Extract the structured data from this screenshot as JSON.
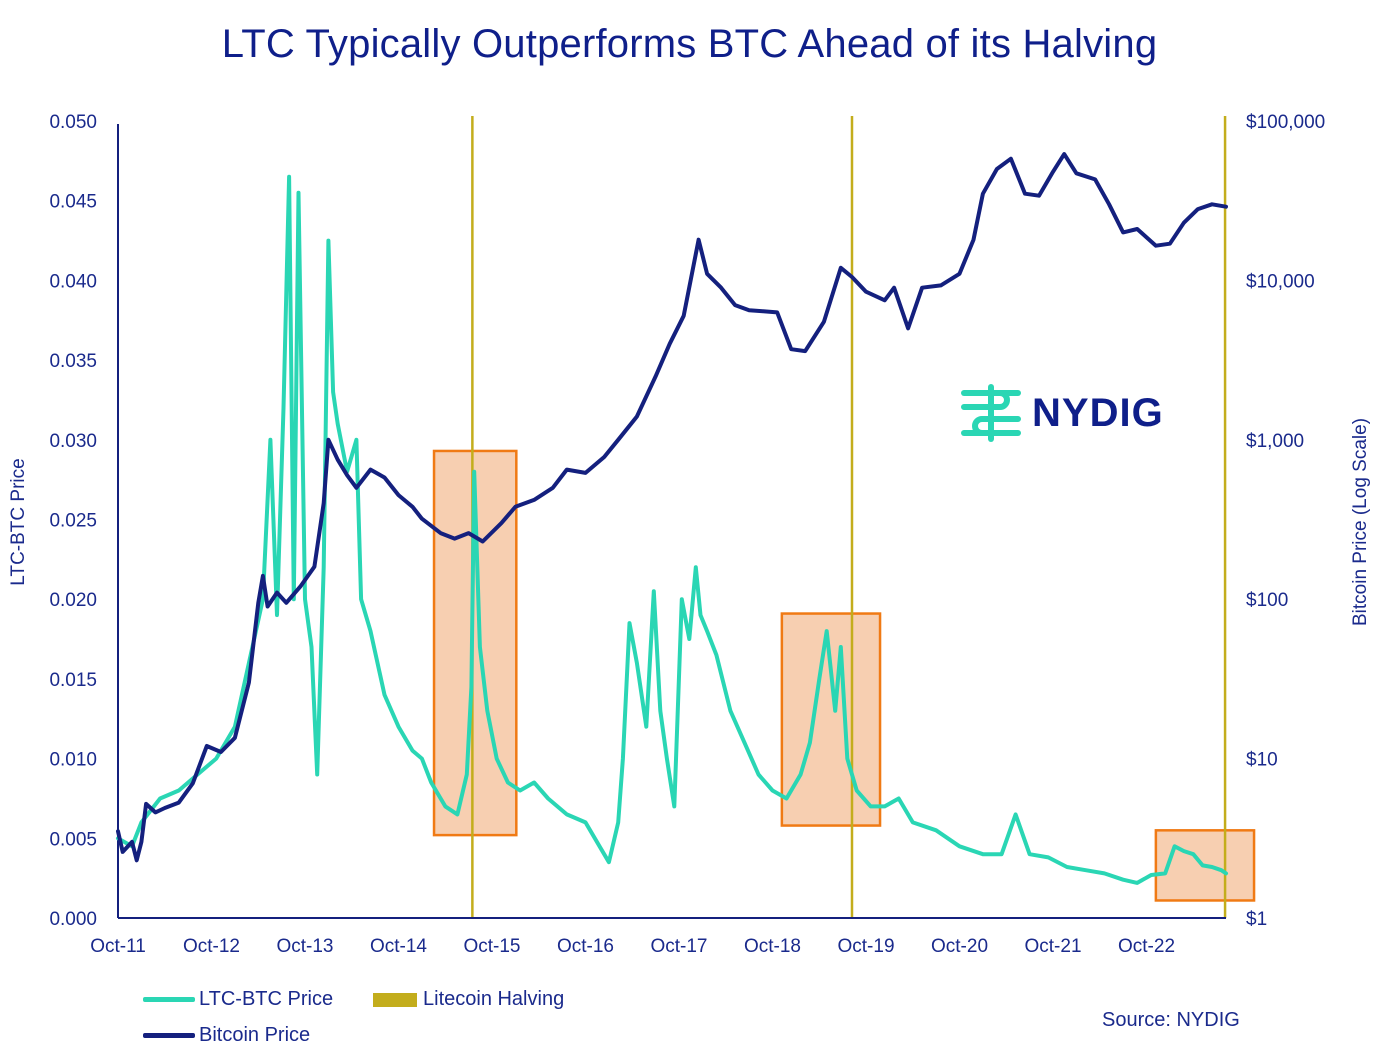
{
  "title": "LTC Typically Outperforms BTC Ahead of its Halving",
  "source": "Source: NYDIG",
  "logo": {
    "text": "NYDIG"
  },
  "legend": {
    "ltc": "LTC-BTC Price",
    "halving": "Litecoin Halving",
    "btc": "Bitcoin Price"
  },
  "colors": {
    "ltc": "#2ad6b4",
    "btc": "#14207e",
    "halving": "#c3ad1c",
    "highlight_fill": "#f6c7a3",
    "highlight_stroke": "#f07a14"
  },
  "chart_data": {
    "type": "line",
    "ylabel_left": "LTC-BTC Price",
    "ylabel_right": "Bitcoin Price (Log Scale)",
    "x_ticks": [
      "Oct-11",
      "Oct-12",
      "Oct-13",
      "Oct-14",
      "Oct-15",
      "Oct-16",
      "Oct-17",
      "Oct-18",
      "Oct-19",
      "Oct-20",
      "Oct-21",
      "Oct-22"
    ],
    "x_range": [
      2011.75,
      2023.6
    ],
    "left_ticks": [
      "0.000",
      "0.005",
      "0.010",
      "0.015",
      "0.020",
      "0.025",
      "0.030",
      "0.035",
      "0.040",
      "0.045",
      "0.050"
    ],
    "left_range": [
      0,
      0.05
    ],
    "right_ticks": [
      "$1",
      "$10",
      "$100",
      "$1,000",
      "$10,000",
      "$100,000"
    ],
    "right_range_log10": [
      0,
      5
    ],
    "halvings": [
      2015.54,
      2019.6,
      2023.59
    ],
    "highlights": [
      {
        "x0": 2015.13,
        "x1": 2016.01,
        "y0": 0.0052,
        "y1": 0.0293
      },
      {
        "x0": 2018.85,
        "x1": 2019.9,
        "y0": 0.0058,
        "y1": 0.0191
      },
      {
        "x0": 2022.85,
        "x1": 2023.9,
        "y0": 0.0011,
        "y1": 0.0055
      }
    ],
    "series": [
      {
        "name": "LTC-BTC Price",
        "axis": "left",
        "points": [
          [
            2011.75,
            0.005
          ],
          [
            2011.9,
            0.0045
          ],
          [
            2012.0,
            0.006
          ],
          [
            2012.2,
            0.0075
          ],
          [
            2012.4,
            0.008
          ],
          [
            2012.6,
            0.009
          ],
          [
            2012.8,
            0.01
          ],
          [
            2013.0,
            0.012
          ],
          [
            2013.15,
            0.016
          ],
          [
            2013.3,
            0.02
          ],
          [
            2013.38,
            0.03
          ],
          [
            2013.45,
            0.019
          ],
          [
            2013.52,
            0.032
          ],
          [
            2013.58,
            0.0465
          ],
          [
            2013.63,
            0.02
          ],
          [
            2013.68,
            0.0455
          ],
          [
            2013.75,
            0.02
          ],
          [
            2013.82,
            0.017
          ],
          [
            2013.88,
            0.009
          ],
          [
            2013.95,
            0.022
          ],
          [
            2014.0,
            0.0425
          ],
          [
            2014.05,
            0.033
          ],
          [
            2014.1,
            0.031
          ],
          [
            2014.2,
            0.028
          ],
          [
            2014.3,
            0.03
          ],
          [
            2014.35,
            0.02
          ],
          [
            2014.45,
            0.018
          ],
          [
            2014.6,
            0.014
          ],
          [
            2014.75,
            0.012
          ],
          [
            2014.9,
            0.0105
          ],
          [
            2015.0,
            0.01
          ],
          [
            2015.1,
            0.0085
          ],
          [
            2015.25,
            0.007
          ],
          [
            2015.38,
            0.0065
          ],
          [
            2015.48,
            0.009
          ],
          [
            2015.53,
            0.0145
          ],
          [
            2015.56,
            0.028
          ],
          [
            2015.62,
            0.017
          ],
          [
            2015.7,
            0.013
          ],
          [
            2015.8,
            0.01
          ],
          [
            2015.92,
            0.0085
          ],
          [
            2016.05,
            0.008
          ],
          [
            2016.2,
            0.0085
          ],
          [
            2016.35,
            0.0075
          ],
          [
            2016.55,
            0.0065
          ],
          [
            2016.75,
            0.006
          ],
          [
            2016.9,
            0.0045
          ],
          [
            2017.0,
            0.0035
          ],
          [
            2017.1,
            0.006
          ],
          [
            2017.15,
            0.01
          ],
          [
            2017.22,
            0.0185
          ],
          [
            2017.3,
            0.016
          ],
          [
            2017.4,
            0.012
          ],
          [
            2017.48,
            0.0205
          ],
          [
            2017.55,
            0.013
          ],
          [
            2017.62,
            0.01
          ],
          [
            2017.7,
            0.007
          ],
          [
            2017.78,
            0.02
          ],
          [
            2017.86,
            0.0175
          ],
          [
            2017.93,
            0.022
          ],
          [
            2017.98,
            0.019
          ],
          [
            2018.05,
            0.018
          ],
          [
            2018.15,
            0.0165
          ],
          [
            2018.3,
            0.013
          ],
          [
            2018.45,
            0.011
          ],
          [
            2018.6,
            0.009
          ],
          [
            2018.75,
            0.008
          ],
          [
            2018.9,
            0.0075
          ],
          [
            2019.05,
            0.009
          ],
          [
            2019.15,
            0.011
          ],
          [
            2019.25,
            0.015
          ],
          [
            2019.33,
            0.018
          ],
          [
            2019.42,
            0.013
          ],
          [
            2019.48,
            0.017
          ],
          [
            2019.55,
            0.01
          ],
          [
            2019.65,
            0.008
          ],
          [
            2019.8,
            0.007
          ],
          [
            2019.95,
            0.007
          ],
          [
            2020.1,
            0.0075
          ],
          [
            2020.25,
            0.006
          ],
          [
            2020.5,
            0.0055
          ],
          [
            2020.75,
            0.0045
          ],
          [
            2021.0,
            0.004
          ],
          [
            2021.2,
            0.004
          ],
          [
            2021.35,
            0.0065
          ],
          [
            2021.5,
            0.004
          ],
          [
            2021.7,
            0.0038
          ],
          [
            2021.9,
            0.0032
          ],
          [
            2022.1,
            0.003
          ],
          [
            2022.3,
            0.0028
          ],
          [
            2022.5,
            0.0024
          ],
          [
            2022.65,
            0.0022
          ],
          [
            2022.8,
            0.0027
          ],
          [
            2022.95,
            0.0028
          ],
          [
            2023.05,
            0.0045
          ],
          [
            2023.15,
            0.0042
          ],
          [
            2023.25,
            0.004
          ],
          [
            2023.35,
            0.0033
          ],
          [
            2023.45,
            0.0032
          ],
          [
            2023.55,
            0.003
          ],
          [
            2023.6,
            0.0028
          ]
        ]
      },
      {
        "name": "Bitcoin Price",
        "axis": "right",
        "points": [
          [
            2011.75,
            3.5
          ],
          [
            2011.8,
            2.6
          ],
          [
            2011.9,
            3.0
          ],
          [
            2011.95,
            2.3
          ],
          [
            2012.0,
            3.0
          ],
          [
            2012.05,
            5.2
          ],
          [
            2012.15,
            4.6
          ],
          [
            2012.25,
            4.9
          ],
          [
            2012.4,
            5.3
          ],
          [
            2012.55,
            7.0
          ],
          [
            2012.7,
            12.0
          ],
          [
            2012.85,
            11.0
          ],
          [
            2013.0,
            13.5
          ],
          [
            2013.15,
            30.0
          ],
          [
            2013.25,
            95.0
          ],
          [
            2013.3,
            140.0
          ],
          [
            2013.35,
            90.0
          ],
          [
            2013.45,
            110.0
          ],
          [
            2013.55,
            95.0
          ],
          [
            2013.7,
            120.0
          ],
          [
            2013.85,
            160.0
          ],
          [
            2013.95,
            400.0
          ],
          [
            2014.0,
            1000.0
          ],
          [
            2014.1,
            750.0
          ],
          [
            2014.2,
            600.0
          ],
          [
            2014.3,
            500.0
          ],
          [
            2014.45,
            650.0
          ],
          [
            2014.6,
            580.0
          ],
          [
            2014.75,
            450.0
          ],
          [
            2014.9,
            380.0
          ],
          [
            2015.0,
            320.0
          ],
          [
            2015.2,
            260.0
          ],
          [
            2015.35,
            240.0
          ],
          [
            2015.5,
            260.0
          ],
          [
            2015.65,
            230.0
          ],
          [
            2015.85,
            300.0
          ],
          [
            2016.0,
            380.0
          ],
          [
            2016.2,
            420.0
          ],
          [
            2016.4,
            500.0
          ],
          [
            2016.55,
            650.0
          ],
          [
            2016.75,
            620.0
          ],
          [
            2016.95,
            780.0
          ],
          [
            2017.1,
            1000.0
          ],
          [
            2017.3,
            1400.0
          ],
          [
            2017.5,
            2500.0
          ],
          [
            2017.65,
            4000.0
          ],
          [
            2017.8,
            6000.0
          ],
          [
            2017.96,
            18000.0
          ],
          [
            2018.05,
            11000.0
          ],
          [
            2018.2,
            9000.0
          ],
          [
            2018.35,
            7000.0
          ],
          [
            2018.5,
            6500.0
          ],
          [
            2018.65,
            6400.0
          ],
          [
            2018.8,
            6300.0
          ],
          [
            2018.95,
            3700.0
          ],
          [
            2019.1,
            3600.0
          ],
          [
            2019.3,
            5500.0
          ],
          [
            2019.48,
            12000.0
          ],
          [
            2019.6,
            10500.0
          ],
          [
            2019.75,
            8500.0
          ],
          [
            2019.95,
            7500.0
          ],
          [
            2020.05,
            9000.0
          ],
          [
            2020.2,
            5000.0
          ],
          [
            2020.35,
            9000.0
          ],
          [
            2020.55,
            9300.0
          ],
          [
            2020.75,
            11000.0
          ],
          [
            2020.9,
            18000.0
          ],
          [
            2021.0,
            35000.0
          ],
          [
            2021.15,
            50000.0
          ],
          [
            2021.3,
            58000.0
          ],
          [
            2021.45,
            35000.0
          ],
          [
            2021.6,
            34000.0
          ],
          [
            2021.75,
            48000.0
          ],
          [
            2021.87,
            62000.0
          ],
          [
            2022.0,
            47000.0
          ],
          [
            2022.2,
            43000.0
          ],
          [
            2022.35,
            30000.0
          ],
          [
            2022.5,
            20000.0
          ],
          [
            2022.65,
            21000.0
          ],
          [
            2022.85,
            16500.0
          ],
          [
            2023.0,
            17000.0
          ],
          [
            2023.15,
            23000.0
          ],
          [
            2023.3,
            28000.0
          ],
          [
            2023.45,
            30000.0
          ],
          [
            2023.6,
            29000.0
          ]
        ]
      }
    ]
  }
}
